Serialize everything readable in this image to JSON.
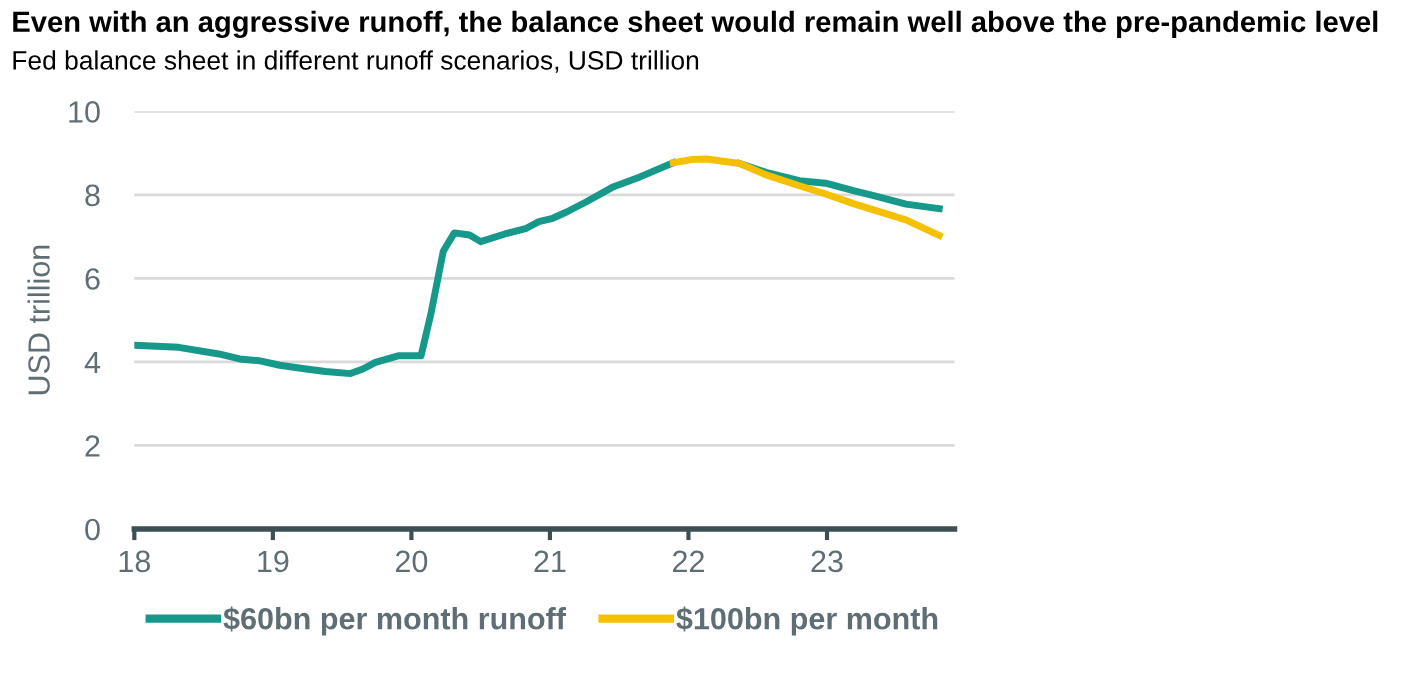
{
  "chart_data": {
    "type": "line",
    "title": "Even with an aggressive runoff, the balance sheet would remain well above the pre-pandemic level",
    "subtitle": "Fed balance sheet in different runoff scenarios, USD trillion",
    "ylabel": "USD trillion",
    "xlim": [
      18,
      23.92
    ],
    "xticks": [
      18,
      19,
      20,
      21,
      22,
      23
    ],
    "ylim": [
      0,
      10
    ],
    "yticks": [
      0,
      2,
      4,
      6,
      8,
      10
    ],
    "grid": "y",
    "legend": "bottom",
    "line_style": "solid",
    "marker": "none",
    "series": [
      {
        "name": "$60bn per month runoff",
        "color": "#16998a",
        "x": [
          18.0,
          18.32,
          18.61,
          18.76,
          18.9,
          19.05,
          19.24,
          19.38,
          19.56,
          19.65,
          19.74,
          19.91,
          20.07,
          20.14,
          20.23,
          20.31,
          20.42,
          20.5,
          20.68,
          20.83,
          20.92,
          21.02,
          21.12,
          21.26,
          21.45,
          21.65,
          21.89,
          22.03,
          22.13,
          22.37,
          22.56,
          22.8,
          22.99,
          23.19,
          23.33,
          23.57,
          23.81
        ],
        "values": [
          4.4,
          4.35,
          4.19,
          4.07,
          4.03,
          3.92,
          3.83,
          3.77,
          3.72,
          3.83,
          3.99,
          4.15,
          4.15,
          5.14,
          6.65,
          7.09,
          7.04,
          6.88,
          7.07,
          7.2,
          7.36,
          7.44,
          7.59,
          7.83,
          8.18,
          8.43,
          8.77,
          null,
          null,
          8.75,
          8.54,
          8.34,
          8.28,
          8.1,
          7.99,
          7.78,
          7.67
        ]
      },
      {
        "name": "$100bn per month",
        "color": "#f5c000",
        "x": [
          21.89,
          22.03,
          22.13,
          22.37,
          22.56,
          22.8,
          22.99,
          23.19,
          23.57,
          23.81
        ],
        "values": [
          8.77,
          8.85,
          8.86,
          8.75,
          8.48,
          8.22,
          8.02,
          7.79,
          7.4,
          7.03
        ]
      }
    ]
  }
}
